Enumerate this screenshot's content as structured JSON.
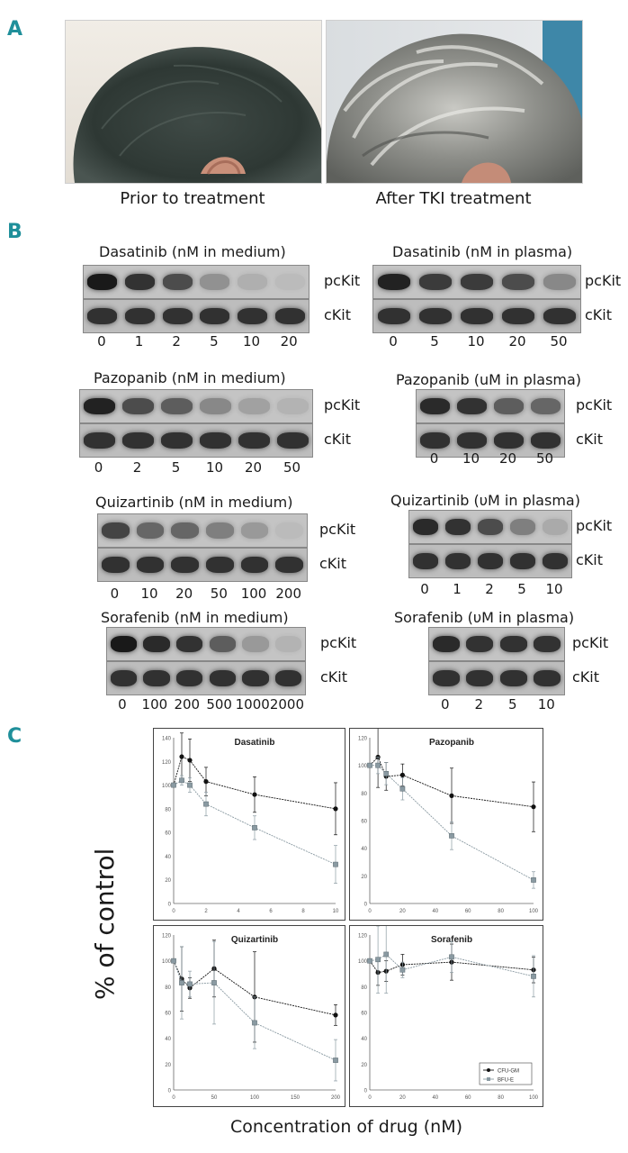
{
  "panel_a": {
    "letter": "A",
    "captions": [
      "Prior to treatment",
      "After TKI treatment"
    ]
  },
  "panel_b": {
    "letter": "B",
    "blots": [
      {
        "title": "Dasatinib (nM in medium)",
        "lanes": [
          "0",
          "1",
          "2",
          "5",
          "10",
          "20"
        ],
        "intensity": [
          1.0,
          0.85,
          0.7,
          0.3,
          0.12,
          0.05
        ]
      },
      {
        "title": "Dasatinib (nM in plasma)",
        "lanes": [
          "0",
          "5",
          "10",
          "20",
          "50"
        ],
        "intensity": [
          0.95,
          0.8,
          0.8,
          0.7,
          0.35
        ]
      },
      {
        "title": "Pazopanib (nM in medium)",
        "lanes": [
          "0",
          "2",
          "5",
          "10",
          "20",
          "50"
        ],
        "intensity": [
          0.95,
          0.7,
          0.6,
          0.35,
          0.2,
          0.1
        ]
      },
      {
        "title": "Pazopanib (uM in plasma)",
        "lanes": [
          "0",
          "10",
          "20",
          "50"
        ],
        "intensity": [
          0.9,
          0.85,
          0.6,
          0.55
        ]
      },
      {
        "title": "Quizartinib (nM in medium)",
        "lanes": [
          "0",
          "10",
          "20",
          "50",
          "100",
          "200"
        ],
        "intensity": [
          0.75,
          0.55,
          0.55,
          0.4,
          0.25,
          0.05
        ]
      },
      {
        "title": "Quizartinib (υM in plasma)",
        "lanes": [
          "0",
          "1",
          "2",
          "5",
          "10"
        ],
        "intensity": [
          0.9,
          0.85,
          0.7,
          0.4,
          0.15
        ]
      },
      {
        "title": "Sorafenib (nM in medium)",
        "lanes": [
          "0",
          "100",
          "200",
          "500",
          "1000",
          "2000"
        ],
        "intensity": [
          1.0,
          0.9,
          0.85,
          0.6,
          0.25,
          0.1
        ]
      },
      {
        "title": "Sorafenib (υM in plasma)",
        "lanes": [
          "0",
          "2",
          "5",
          "10"
        ],
        "intensity": [
          0.9,
          0.85,
          0.85,
          0.85
        ]
      }
    ],
    "row_labels": [
      "pcKit",
      "cKit"
    ]
  },
  "panel_c": {
    "letter": "C",
    "ylabel": "% of control",
    "xlabel": "Concentration of drug (nM)",
    "legend": [
      "CFU-GM",
      "BFU-E"
    ],
    "colors": {
      "cfu": "#111111",
      "bfu": "#8a9aa2"
    }
  },
  "chart_data": [
    {
      "type": "line",
      "title": "Dasatinib",
      "xlim": [
        0,
        10
      ],
      "ylim": [
        0,
        140
      ],
      "xticks": [
        0,
        2,
        4,
        6,
        8,
        10
      ],
      "yticks": [
        0,
        20,
        40,
        60,
        80,
        100,
        120,
        140
      ],
      "series": [
        {
          "name": "CFU-GM",
          "x": [
            0,
            0.5,
            1,
            2,
            5,
            10
          ],
          "y": [
            100,
            124,
            121,
            103,
            92,
            80
          ],
          "err": [
            0,
            20,
            18,
            12,
            15,
            22
          ]
        },
        {
          "name": "BFU-E",
          "x": [
            0,
            0.5,
            1,
            2,
            5,
            10
          ],
          "y": [
            100,
            104,
            100,
            84,
            64,
            33
          ],
          "err": [
            0,
            4,
            6,
            10,
            10,
            16
          ]
        }
      ]
    },
    {
      "type": "line",
      "title": "Pazopanib",
      "xlim": [
        0,
        100
      ],
      "ylim": [
        0,
        120
      ],
      "xticks": [
        0,
        20,
        40,
        60,
        80,
        100
      ],
      "yticks": [
        0,
        20,
        40,
        60,
        80,
        100,
        120
      ],
      "series": [
        {
          "name": "CFU-GM",
          "x": [
            0,
            5,
            10,
            20,
            50,
            100
          ],
          "y": [
            100,
            106,
            92,
            93,
            78,
            70
          ],
          "err": [
            0,
            22,
            10,
            8,
            20,
            18
          ]
        },
        {
          "name": "BFU-E",
          "x": [
            0,
            5,
            10,
            20,
            50,
            100
          ],
          "y": [
            100,
            100,
            94,
            83,
            49,
            17
          ],
          "err": [
            0,
            6,
            8,
            8,
            10,
            6
          ]
        }
      ]
    },
    {
      "type": "line",
      "title": "Quizartinib",
      "xlim": [
        0,
        200
      ],
      "ylim": [
        0,
        120
      ],
      "xticks": [
        0,
        50,
        100,
        150,
        200
      ],
      "yticks": [
        0,
        20,
        40,
        60,
        80,
        100,
        120
      ],
      "series": [
        {
          "name": "CFU-GM",
          "x": [
            0,
            10,
            20,
            50,
            100,
            200
          ],
          "y": [
            100,
            86,
            79,
            94,
            72,
            58
          ],
          "err": [
            0,
            25,
            8,
            22,
            35,
            8
          ]
        },
        {
          "name": "BFU-E",
          "x": [
            0,
            10,
            20,
            50,
            100,
            200
          ],
          "y": [
            100,
            83,
            82,
            83,
            52,
            23
          ],
          "err": [
            0,
            28,
            10,
            32,
            20,
            16
          ]
        }
      ]
    },
    {
      "type": "line",
      "title": "Sorafenib",
      "xlim": [
        0,
        100
      ],
      "ylim": [
        0,
        120
      ],
      "xticks": [
        0,
        20,
        40,
        60,
        80,
        100
      ],
      "yticks": [
        0,
        20,
        40,
        60,
        80,
        100,
        120
      ],
      "series": [
        {
          "name": "CFU-GM",
          "x": [
            0,
            5,
            10,
            20,
            50,
            100
          ],
          "y": [
            100,
            91,
            92,
            97,
            99,
            93
          ],
          "err": [
            0,
            10,
            8,
            8,
            14,
            10
          ]
        },
        {
          "name": "BFU-E",
          "x": [
            0,
            5,
            10,
            20,
            50,
            100
          ],
          "y": [
            100,
            101,
            105,
            93,
            103,
            88
          ],
          "err": [
            0,
            26,
            30,
            6,
            12,
            16
          ]
        }
      ]
    }
  ]
}
